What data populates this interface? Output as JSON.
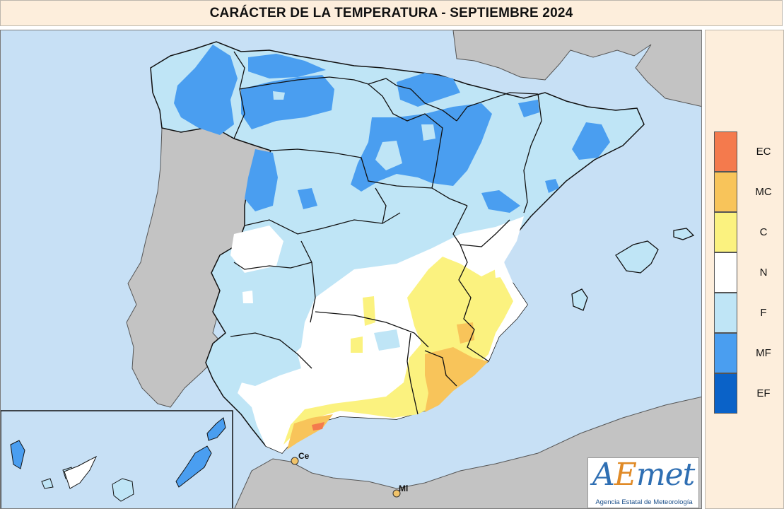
{
  "title": "CARÁCTER DE LA TEMPERATURA - SEPTIEMBRE 2024",
  "legend": [
    {
      "code": "EC",
      "color": "#f47a4d"
    },
    {
      "code": "MC",
      "color": "#f8c45a"
    },
    {
      "code": "C",
      "color": "#fbf27f"
    },
    {
      "code": "N",
      "color": "#ffffff"
    },
    {
      "code": "F",
      "color": "#bfe5f6"
    },
    {
      "code": "MF",
      "color": "#4a9ef0"
    },
    {
      "code": "EF",
      "color": "#0a62c8"
    }
  ],
  "cities": [
    {
      "code": "Ce"
    },
    {
      "code": "Ml"
    }
  ],
  "logo": {
    "mark_a": "A",
    "mark_e": "E",
    "mark_met": "met",
    "subtitle": "Agencia Estatal de Meteorología"
  },
  "colors": {
    "sea": "#c7e0f5",
    "land_other": "#c3c3c3",
    "frame_border": "#7a7a7a",
    "panel_bg": "#fdeedc"
  }
}
